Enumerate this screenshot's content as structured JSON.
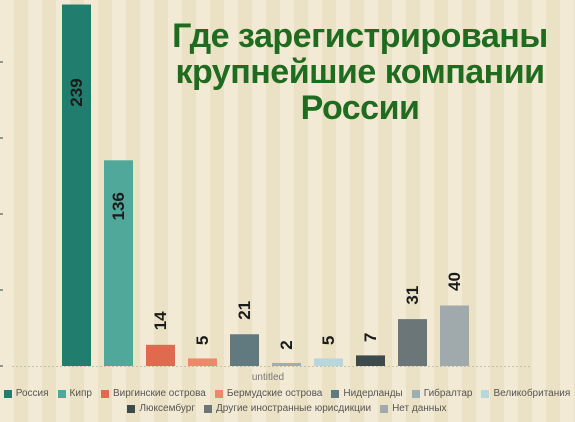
{
  "title_lines": [
    "Где зарегистрированы",
    "крупнейшие компании",
    "России"
  ],
  "colors": {
    "title": "#1f6b1f",
    "background_light": "#f2ead4",
    "background_dark": "#ebe1c4",
    "value_label": "#1b1b1b"
  },
  "chart_data": {
    "type": "bar",
    "categories": [
      "Россия",
      "Кипр",
      "Виргинские острова",
      "Бермудские острова",
      "Нидерланды",
      "Гибралтар",
      "Великобритания",
      "Люксембург",
      "Другие иностранные юрисдикции",
      "Нет данных"
    ],
    "values": [
      239,
      136,
      14,
      5,
      21,
      2,
      5,
      7,
      31,
      40
    ],
    "bar_colors": [
      "#217e6e",
      "#4fa89a",
      "#e06a4e",
      "#f0876a",
      "#617a80",
      "#9bb0b6",
      "#b7d7dd",
      "#3c4a4b",
      "#6b7678",
      "#a0aaad"
    ],
    "xlabel": "untitled",
    "ylabel": "",
    "ylim": [
      0,
      240
    ],
    "grid": false,
    "legend_position": "bottom"
  }
}
